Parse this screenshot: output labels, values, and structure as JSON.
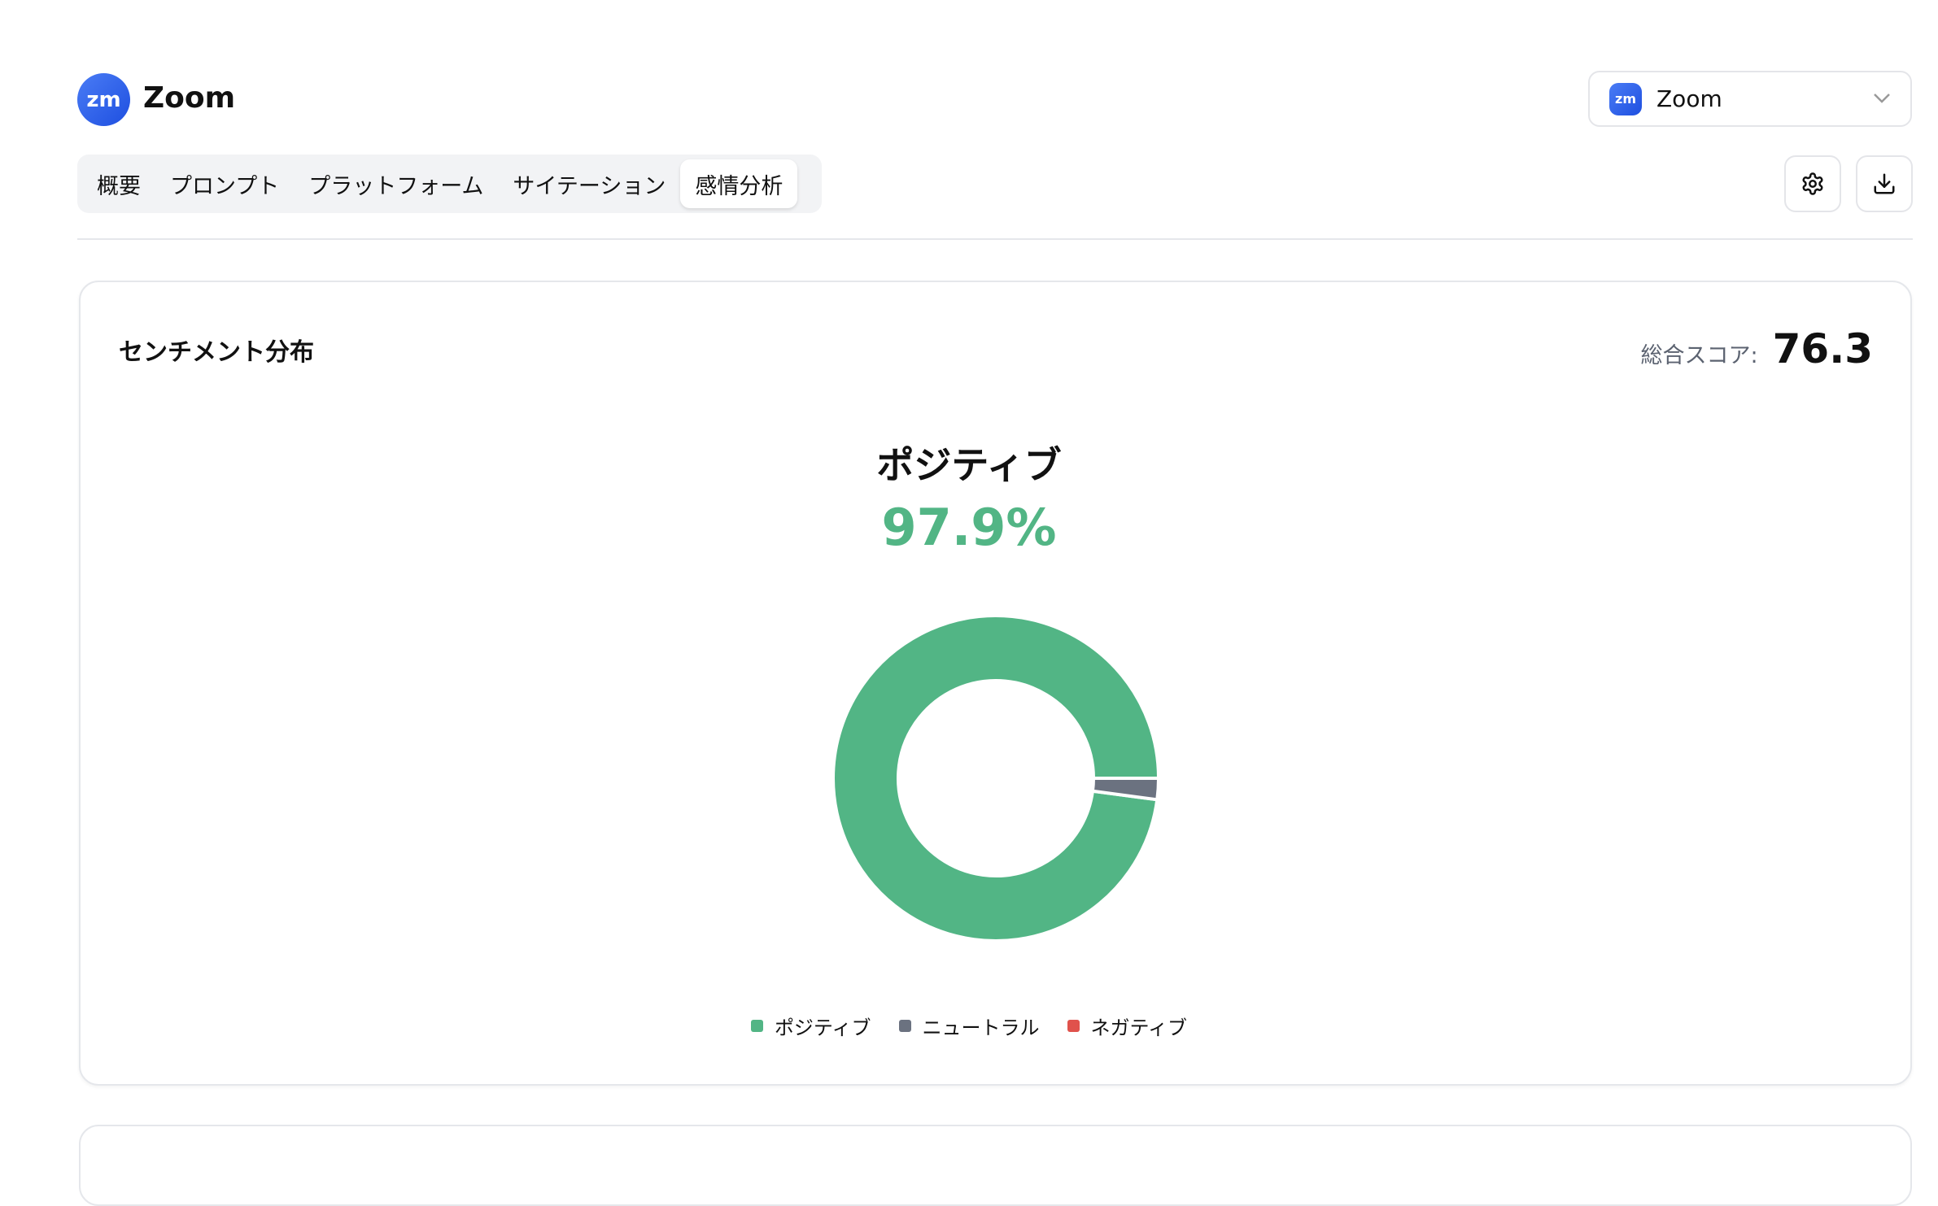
{
  "header": {
    "logo_text": "zm",
    "title": "Zoom"
  },
  "tabs": [
    {
      "label": "概要"
    },
    {
      "label": "プロンプト"
    },
    {
      "label": "プラットフォーム"
    },
    {
      "label": "サイテーション"
    },
    {
      "label": "感情分析",
      "active": true
    }
  ],
  "brand_select": {
    "logo_text": "zm",
    "value": "Zoom",
    "icon": "chevron-down-icon"
  },
  "actions": {
    "settings_icon": "gear-icon",
    "download_icon": "download-icon"
  },
  "card": {
    "title": "センチメント分布",
    "score_label": "総合スコア:",
    "score_value": "76.3",
    "highlight_label": "ポジティブ",
    "highlight_value": "97.9%"
  },
  "chart_data": {
    "type": "pie",
    "variant": "donut",
    "categories": [
      "ポジティブ",
      "ニュートラル",
      "ネガティブ"
    ],
    "values": [
      97.9,
      2.1,
      0
    ],
    "colors": [
      "#52b585",
      "#6b7280",
      "#e0524c"
    ],
    "legend_position": "bottom"
  }
}
